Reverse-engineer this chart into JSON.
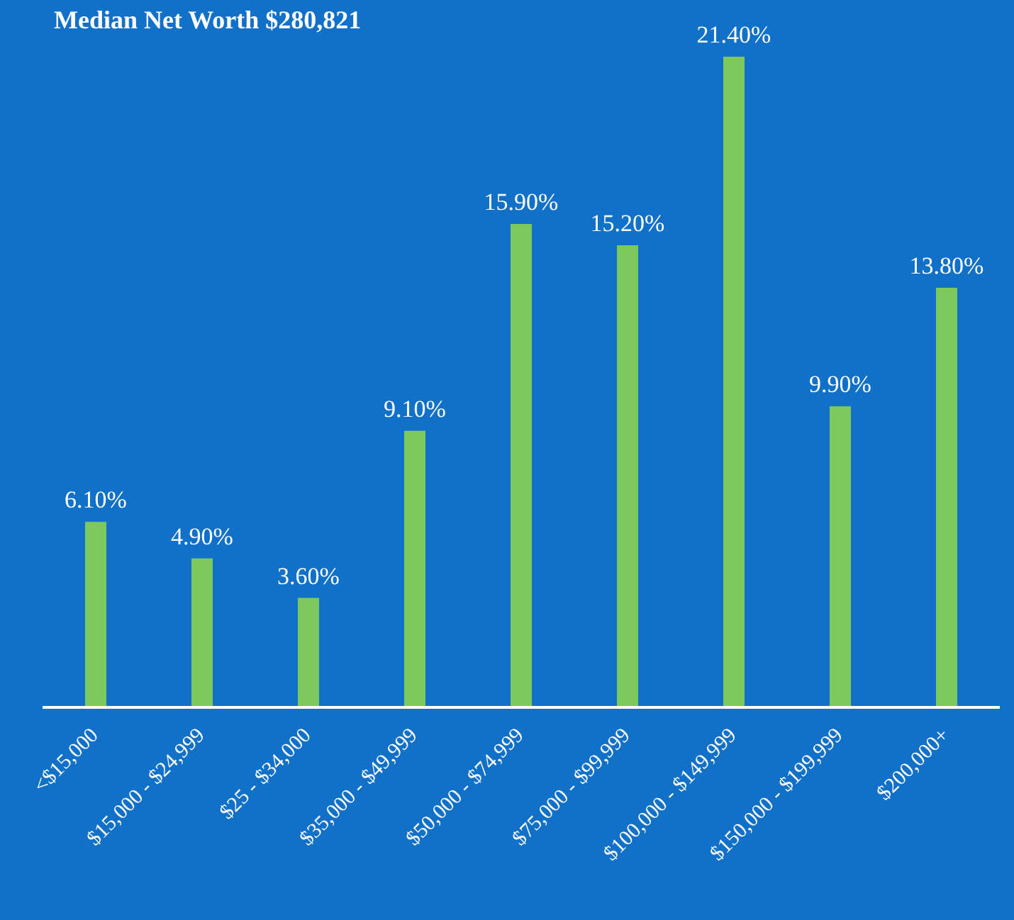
{
  "chart_data": {
    "type": "bar",
    "title": "Median Net Worth $280,821",
    "categories": [
      "<$15,000",
      "$15,000 - $24,999",
      "$25 - $34,000",
      "$35,000 - $49,999",
      "$50,000 - $74,999",
      "$75,000 - $99,999",
      "$100,000 - $149,999",
      "$150,000 - $199,999",
      "$200,000+"
    ],
    "values": [
      6.1,
      4.9,
      3.6,
      9.1,
      15.9,
      15.2,
      21.4,
      9.9,
      13.8
    ],
    "value_labels": [
      "6.10%",
      "4.90%",
      "3.60%",
      "9.10%",
      "15.90%",
      "15.20%",
      "21.40%",
      "9.90%",
      "13.80%"
    ],
    "color": "#7dc95e",
    "grid": false,
    "legend": false
  }
}
